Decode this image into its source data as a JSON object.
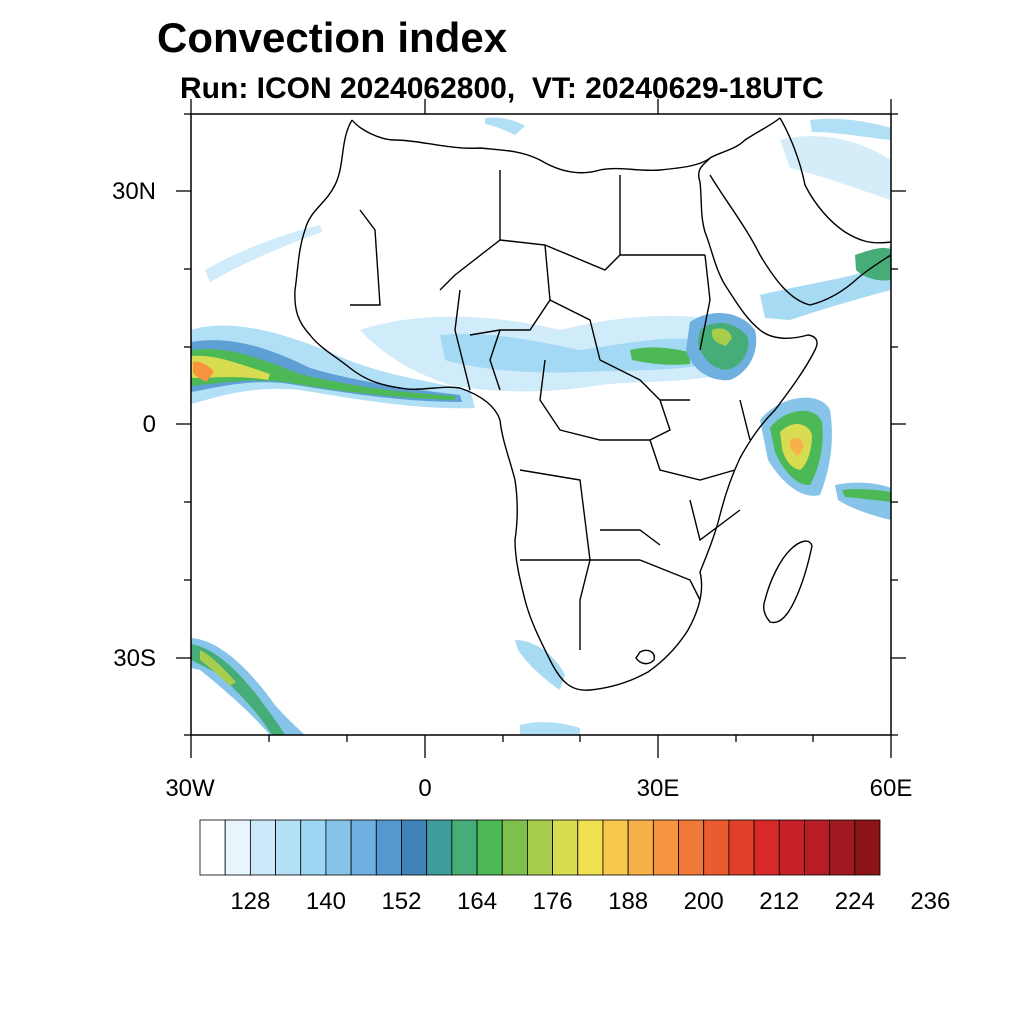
{
  "title": "Convection index",
  "subtitle": "Run: ICON 2024062800,  VT: 20240629-18UTC",
  "axes": {
    "lat_labels": [
      "30N",
      "0",
      "30S"
    ],
    "lon_labels": [
      "30W",
      "0",
      "30E",
      "60E"
    ]
  },
  "colorbar": {
    "colors": [
      "#ffffff",
      "#e8f5fc",
      "#cbe9f8",
      "#b4e0f6",
      "#9dd7f3",
      "#86c4ea",
      "#6fb0e0",
      "#5598d0",
      "#3f84b8",
      "#3e9c9a",
      "#46ad78",
      "#4cb856",
      "#7ec04c",
      "#a8cc4c",
      "#d8dc50",
      "#f0e050",
      "#f8c84c",
      "#f8b048",
      "#f89440",
      "#f07838",
      "#e85c30",
      "#e04028",
      "#d82828",
      "#c82028",
      "#b81c24",
      "#a01820",
      "#8c1418"
    ],
    "labels": [
      "128",
      "140",
      "152",
      "164",
      "176",
      "188",
      "200",
      "212",
      "224",
      "236"
    ]
  }
}
